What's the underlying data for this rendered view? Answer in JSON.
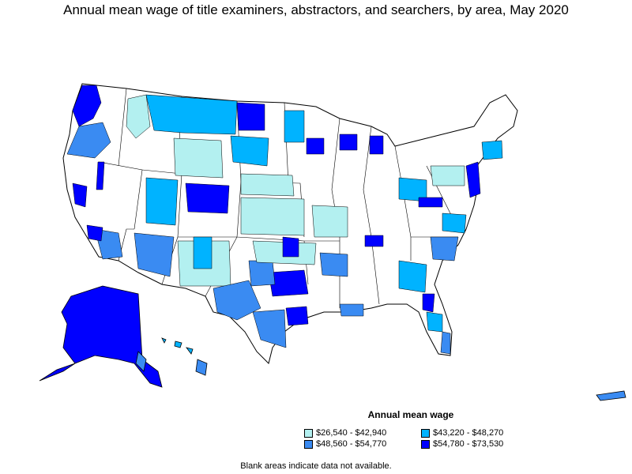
{
  "title": "Annual mean wage of title examiners, abstractors, and searchers, by area, May 2020",
  "legend": {
    "title": "Annual mean wage",
    "items": [
      {
        "label": "$26,540 - $42,940",
        "color": "#b3f0f0"
      },
      {
        "label": "$43,220 - $48,270",
        "color": "#00b3ff"
      },
      {
        "label": "$48,560 - $54,770",
        "color": "#3a8bf2"
      },
      {
        "label": "$54,780 - $73,530",
        "color": "#0000ff"
      }
    ]
  },
  "footnote": "Blank areas indicate data not available.",
  "colors": {
    "no_data": "#ffffff",
    "border": "#000000"
  }
}
